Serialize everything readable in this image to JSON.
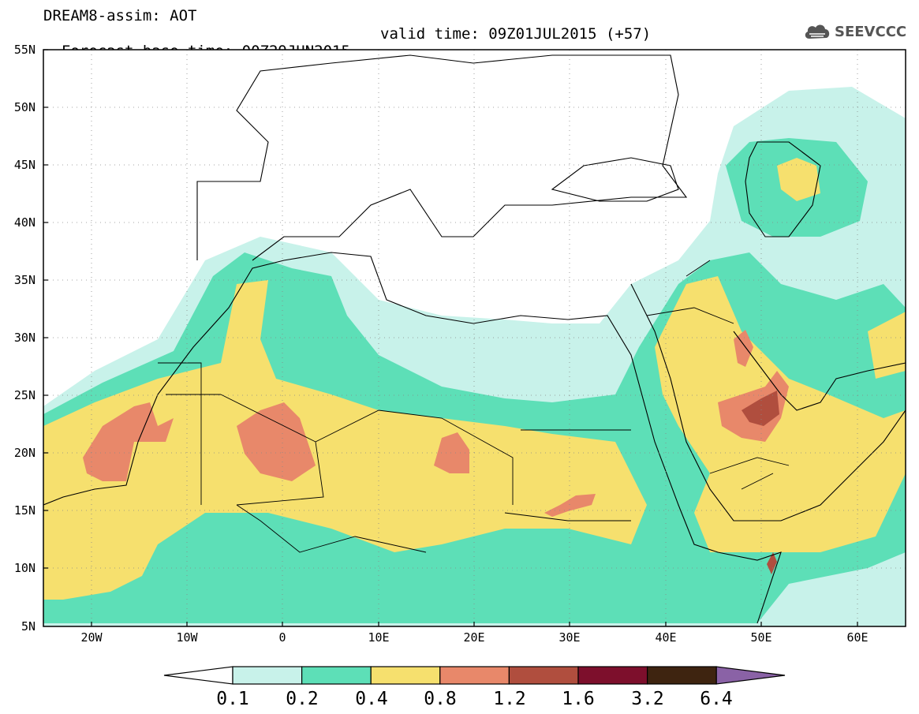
{
  "header": {
    "line1": "DREAM8-assim: AOT",
    "base_time": "Forecast base time: 00Z29JUN2015",
    "valid_time": "valid time: 09Z01JUL2015 (+57)"
  },
  "logo": {
    "text": "SEEVCCC",
    "icon": "cloud-icon",
    "color": "#555555"
  },
  "map": {
    "lon_range": [
      -25,
      65
    ],
    "lat_range": [
      5,
      55
    ],
    "lat_labels": [
      "55N",
      "50N",
      "45N",
      "40N",
      "35N",
      "30N",
      "25N",
      "20N",
      "15N",
      "10N",
      "5N"
    ],
    "lon_labels": [
      "20W",
      "10W",
      "0",
      "10E",
      "20E",
      "30E",
      "40E",
      "50E",
      "60E"
    ],
    "grid": "dotted"
  },
  "colorbar": {
    "labels": [
      "0.1",
      "0.2",
      "0.4",
      "0.8",
      "1.2",
      "1.6",
      "3.2",
      "6.4"
    ],
    "colors": [
      "#ffffff",
      "#c8f2ea",
      "#5ddfb7",
      "#f6e06e",
      "#e8886a",
      "#b04e3e",
      "#7d0f2c",
      "#3e2410",
      "#8a62a6"
    ]
  }
}
